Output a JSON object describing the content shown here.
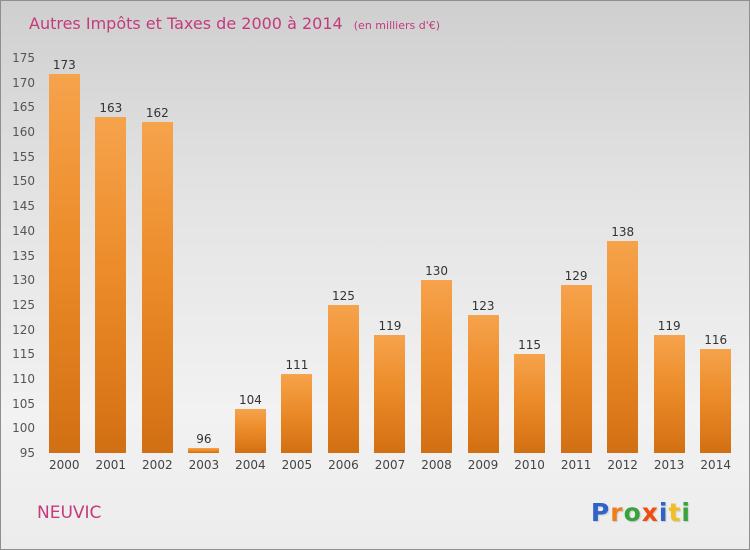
{
  "header": {
    "title": "Autres Impôts et Taxes de 2000 à 2014",
    "subtitle": "(en milliers d'€)"
  },
  "footer": {
    "location": "NEUVIC",
    "logo_letters": [
      {
        "ch": "P",
        "color": "#2f63c9"
      },
      {
        "ch": "r",
        "color": "#f07d1a"
      },
      {
        "ch": "o",
        "color": "#38a23c"
      },
      {
        "ch": "x",
        "color": "#ee4d0d"
      },
      {
        "ch": "i",
        "color": "#2f63c9"
      },
      {
        "ch": "t",
        "color": "#f0c020"
      },
      {
        "ch": "i",
        "color": "#38a23c"
      }
    ]
  },
  "chart_data": {
    "type": "bar",
    "title": "Autres Impôts et Taxes de 2000 à 2014",
    "subtitle": "(en milliers d'€)",
    "categories": [
      "2000",
      "2001",
      "2002",
      "2003",
      "2004",
      "2005",
      "2006",
      "2007",
      "2008",
      "2009",
      "2010",
      "2011",
      "2012",
      "2013",
      "2014"
    ],
    "values": [
      173,
      163,
      162,
      96,
      104,
      111,
      125,
      119,
      130,
      123,
      115,
      129,
      138,
      119,
      116
    ],
    "xlabel": "",
    "ylabel": "",
    "ylim": [
      95,
      175
    ],
    "ytick_step": 5,
    "grid": false,
    "legend": false,
    "bar_color_top": "#f6a34c",
    "bar_color_bottom": "#d06f13",
    "title_color": "#c43a7d",
    "value_label_color": "#333333"
  }
}
